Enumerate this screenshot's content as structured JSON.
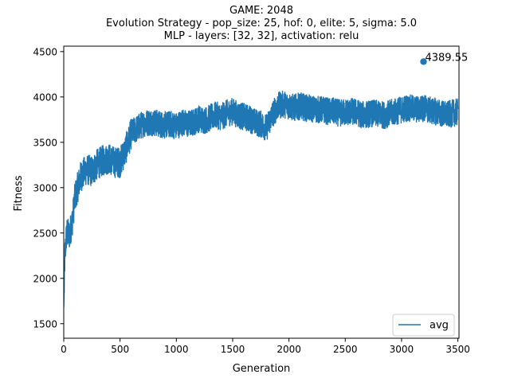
{
  "chart_data": {
    "type": "line",
    "title_lines": [
      "GAME: 2048",
      "Evolution Strategy - pop_size: 25, hof: 0, elite: 5, sigma: 5.0",
      "MLP - layers: [32, 32], activation: relu"
    ],
    "xlabel": "Generation",
    "ylabel": "Fitness",
    "xlim": [
      0,
      3510
    ],
    "ylim": [
      1340,
      4560
    ],
    "xticks": [
      0,
      500,
      1000,
      1500,
      2000,
      2500,
      3000,
      3500
    ],
    "yticks": [
      1500,
      2000,
      2500,
      3000,
      3500,
      4000,
      4500
    ],
    "legend_position": "lower-right",
    "series": [
      {
        "name": "avg",
        "color": "#1f77b4",
        "points": [
          [
            0,
            1680
          ],
          [
            10,
            2250
          ],
          [
            25,
            2500
          ],
          [
            50,
            2480
          ],
          [
            75,
            2620
          ],
          [
            100,
            2900
          ],
          [
            150,
            3120
          ],
          [
            200,
            3200
          ],
          [
            250,
            3180
          ],
          [
            300,
            3260
          ],
          [
            350,
            3300
          ],
          [
            400,
            3320
          ],
          [
            450,
            3280
          ],
          [
            500,
            3280
          ],
          [
            550,
            3420
          ],
          [
            600,
            3600
          ],
          [
            650,
            3650
          ],
          [
            700,
            3700
          ],
          [
            750,
            3720
          ],
          [
            800,
            3720
          ],
          [
            850,
            3700
          ],
          [
            900,
            3690
          ],
          [
            950,
            3700
          ],
          [
            1000,
            3680
          ],
          [
            1050,
            3720
          ],
          [
            1100,
            3700
          ],
          [
            1150,
            3720
          ],
          [
            1200,
            3760
          ],
          [
            1250,
            3740
          ],
          [
            1300,
            3770
          ],
          [
            1350,
            3800
          ],
          [
            1400,
            3780
          ],
          [
            1450,
            3820
          ],
          [
            1500,
            3840
          ],
          [
            1550,
            3800
          ],
          [
            1600,
            3780
          ],
          [
            1650,
            3760
          ],
          [
            1700,
            3720
          ],
          [
            1750,
            3700
          ],
          [
            1800,
            3660
          ],
          [
            1850,
            3800
          ],
          [
            1900,
            3900
          ],
          [
            1950,
            3920
          ],
          [
            2000,
            3900
          ],
          [
            2050,
            3880
          ],
          [
            2100,
            3900
          ],
          [
            2150,
            3880
          ],
          [
            2200,
            3870
          ],
          [
            2250,
            3860
          ],
          [
            2300,
            3860
          ],
          [
            2350,
            3840
          ],
          [
            2400,
            3840
          ],
          [
            2450,
            3820
          ],
          [
            2500,
            3830
          ],
          [
            2550,
            3840
          ],
          [
            2600,
            3830
          ],
          [
            2650,
            3800
          ],
          [
            2700,
            3810
          ],
          [
            2750,
            3820
          ],
          [
            2800,
            3810
          ],
          [
            2850,
            3800
          ],
          [
            2900,
            3820
          ],
          [
            2950,
            3840
          ],
          [
            3000,
            3860
          ],
          [
            3050,
            3880
          ],
          [
            3100,
            3870
          ],
          [
            3150,
            3860
          ],
          [
            3200,
            3880
          ],
          [
            3250,
            3850
          ],
          [
            3300,
            3840
          ],
          [
            3350,
            3820
          ],
          [
            3400,
            3800
          ],
          [
            3450,
            3820
          ],
          [
            3500,
            3830
          ]
        ]
      }
    ],
    "annotations": [
      {
        "x": 3195,
        "y": 4389.55,
        "text": "4389.55"
      }
    ]
  }
}
